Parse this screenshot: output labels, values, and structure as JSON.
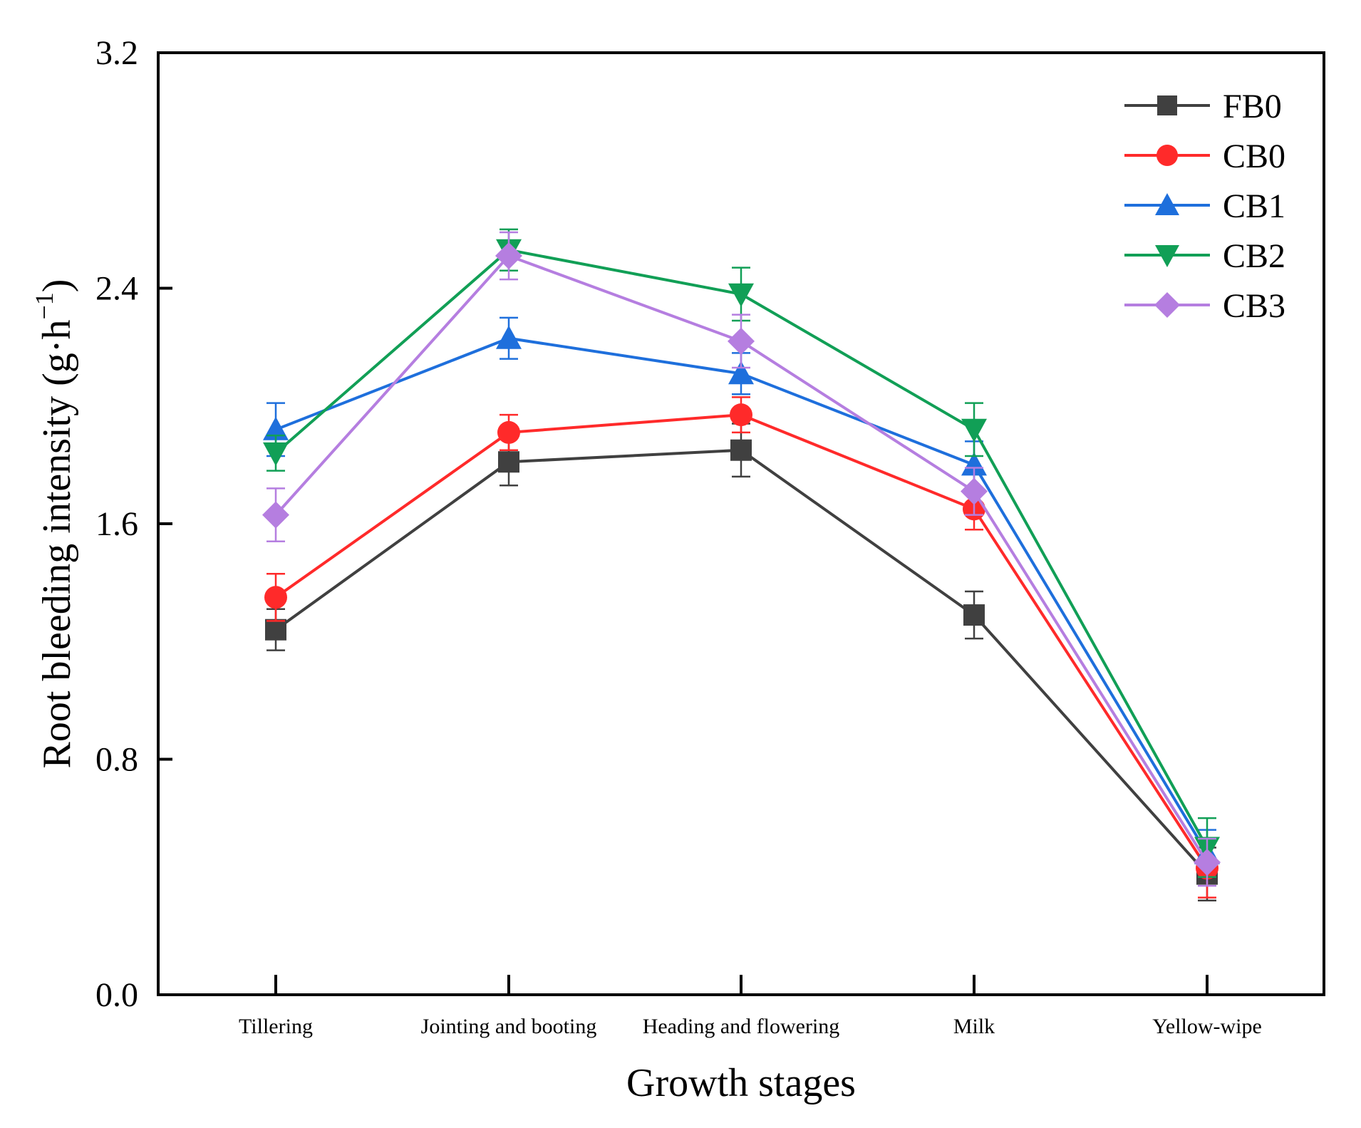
{
  "chart_data": {
    "type": "line",
    "title": "",
    "xlabel": "Growth stages",
    "ylabel_main": "Root bleeding intensity (g·h",
    "ylabel_sup": "−1",
    "ylabel_close": ")",
    "ylim": [
      0.0,
      3.2
    ],
    "yticks": [
      "0.0",
      "0.8",
      "1.6",
      "2.4",
      "3.2"
    ],
    "ytick_values": [
      0.0,
      0.8,
      1.6,
      2.4,
      3.2
    ],
    "categories": [
      "Tillering",
      "Jointing and booting",
      "Heading and flowering",
      "Milk",
      "Yellow-wipe"
    ],
    "grid": false,
    "legend_position": "top-right",
    "series": [
      {
        "name": "FB0",
        "color": "#404040",
        "marker": "square",
        "values": [
          1.24,
          1.81,
          1.85,
          1.29,
          0.41
        ],
        "errors": [
          0.07,
          0.08,
          0.09,
          0.08,
          0.09
        ]
      },
      {
        "name": "CB0",
        "color": "#ff2a2a",
        "marker": "circle",
        "values": [
          1.35,
          1.91,
          1.97,
          1.65,
          0.43
        ],
        "errors": [
          0.08,
          0.06,
          0.06,
          0.07,
          0.1
        ]
      },
      {
        "name": "CB1",
        "color": "#1e6fdc",
        "marker": "triangle-up",
        "values": [
          1.92,
          2.23,
          2.11,
          1.8,
          0.48
        ],
        "errors": [
          0.09,
          0.07,
          0.07,
          0.08,
          0.08
        ]
      },
      {
        "name": "CB2",
        "color": "#119f56",
        "marker": "triangle-down",
        "values": [
          1.84,
          2.53,
          2.38,
          1.92,
          0.5
        ],
        "errors": [
          0.06,
          0.07,
          0.09,
          0.09,
          0.1
        ]
      },
      {
        "name": "CB3",
        "color": "#b57ee0",
        "marker": "diamond",
        "values": [
          1.63,
          2.51,
          2.22,
          1.71,
          0.45
        ],
        "errors": [
          0.09,
          0.08,
          0.09,
          0.08,
          0.08
        ]
      }
    ]
  }
}
